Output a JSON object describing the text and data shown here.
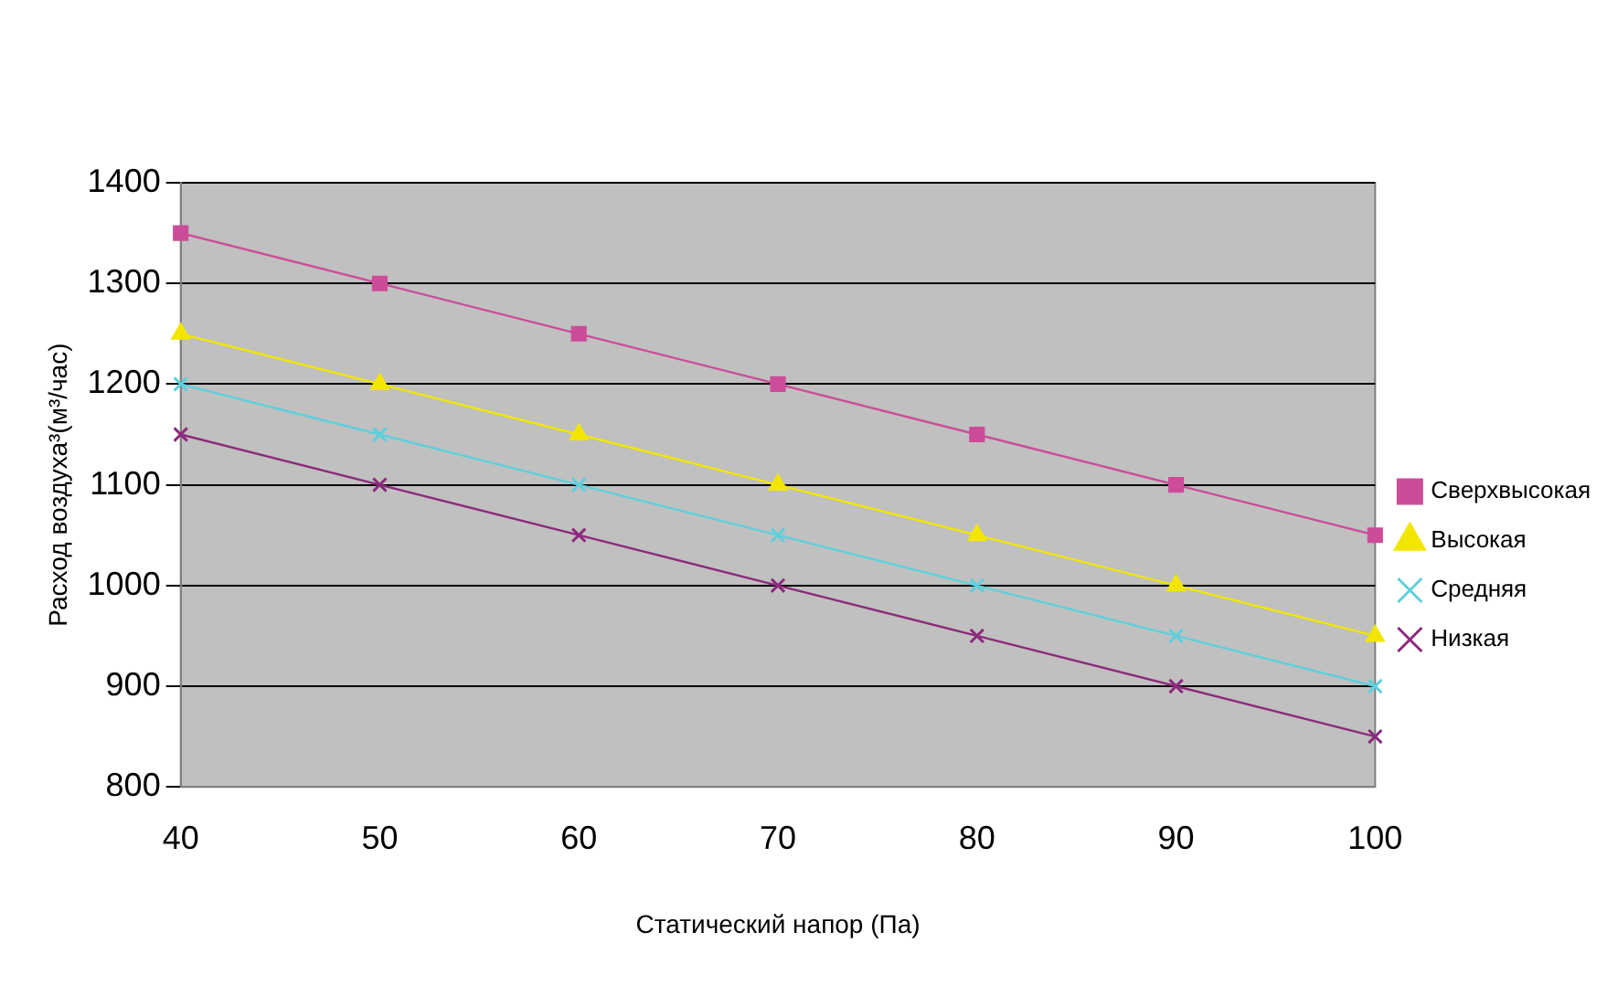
{
  "chart_data": {
    "type": "line",
    "xlabel": "Статический напор (Па)",
    "ylabel": "Расход воздуха³(м³/час)",
    "categories": [
      "40",
      "50",
      "60",
      "70",
      "80",
      "90",
      "100"
    ],
    "ylim": [
      800,
      1400
    ],
    "yticks": [
      800,
      900,
      1000,
      1100,
      1200,
      1300,
      1400
    ],
    "grid": "y",
    "legend": "right",
    "line_style": "solid",
    "series": [
      {
        "name": "Сверхвысокая",
        "color": "#cc4c99",
        "marker": "square",
        "values": [
          1350,
          1300,
          1250,
          1200,
          1150,
          1100,
          1050
        ]
      },
      {
        "name": "Высокая",
        "color": "#f2e600",
        "marker": "triangle",
        "values": [
          1250,
          1200,
          1150,
          1100,
          1050,
          1000,
          950
        ]
      },
      {
        "name": "Средняя",
        "color": "#5fcfdc",
        "marker": "cross",
        "values": [
          1200,
          1150,
          1100,
          1050,
          1000,
          950,
          900
        ]
      },
      {
        "name": "Низкая",
        "color": "#8c2a7c",
        "marker": "cross",
        "values": [
          1150,
          1100,
          1050,
          1000,
          950,
          900,
          850
        ]
      }
    ]
  }
}
